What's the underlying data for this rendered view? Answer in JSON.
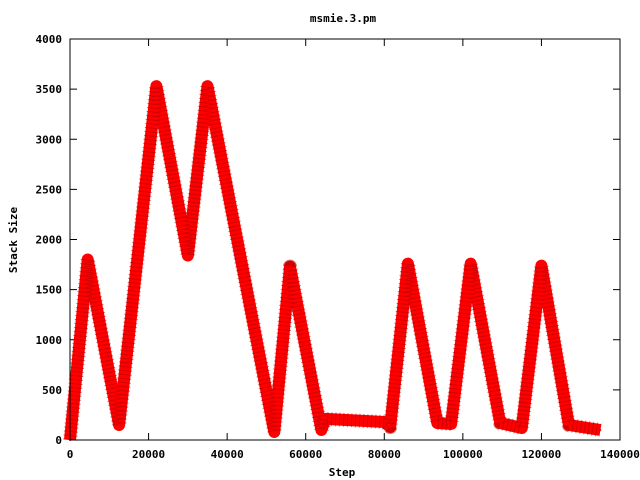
{
  "chart_data": {
    "type": "line",
    "title": "msmie.3.pm",
    "xlabel": "Step",
    "ylabel": "Stack Size",
    "xlim": [
      0,
      140000
    ],
    "ylim": [
      0,
      4000
    ],
    "xticks": [
      0,
      20000,
      40000,
      60000,
      80000,
      100000,
      120000,
      140000
    ],
    "yticks": [
      0,
      500,
      1000,
      1500,
      2000,
      2500,
      3000,
      3500,
      4000
    ],
    "grid": false,
    "legend": "none",
    "series": [
      {
        "color": "#ff0000",
        "x": [
          0,
          4500,
          12500,
          22000,
          30000,
          35000,
          52000,
          56000,
          64000,
          65000,
          80000,
          81500,
          86000,
          93500,
          97000,
          102000,
          109500,
          115000,
          120000,
          127000,
          135000
        ],
        "y": [
          0,
          1800,
          150,
          3530,
          1840,
          3530,
          80,
          1730,
          100,
          210,
          180,
          130,
          1760,
          170,
          160,
          1760,
          170,
          120,
          1740,
          150,
          100
        ]
      }
    ]
  }
}
